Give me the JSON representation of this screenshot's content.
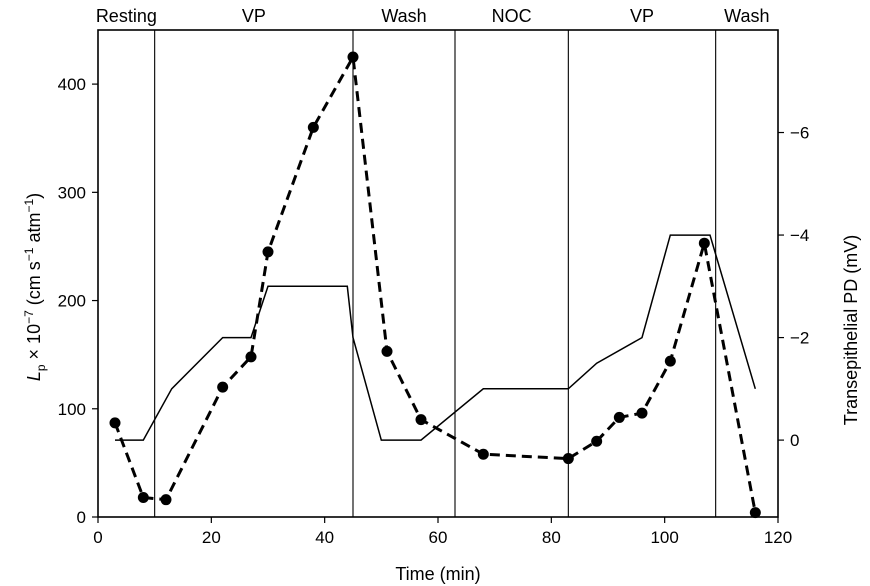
{
  "chart_data": {
    "type": "line",
    "title": "",
    "xlabel": "Time (min)",
    "ylabel_left": {
      "main": "L",
      "sub": "p",
      "rest1": " × 10",
      "sup1": "−7",
      "rest2": " (cm s",
      "sup2": "−1",
      "rest3": " atm",
      "sup3": "−1",
      "rest4": ")"
    },
    "ylabel_right": "Transepithelial PD (mV)",
    "xlim": [
      0,
      120
    ],
    "ylim_left": [
      0,
      450
    ],
    "ylim_right": [
      1.5,
      -8.0
    ],
    "x_ticks": [
      0,
      20,
      40,
      60,
      80,
      100,
      120
    ],
    "y_ticks_left": [
      0,
      100,
      200,
      300,
      400
    ],
    "y_ticks_right": [
      0,
      -2,
      -4,
      -6
    ],
    "y_tick_labels_right": [
      "0",
      "−2",
      "−4",
      "−6"
    ],
    "phases": [
      {
        "label": "Resting",
        "start": 0,
        "end": 10
      },
      {
        "label": "VP",
        "start": 10,
        "end": 45
      },
      {
        "label": "Wash",
        "start": 45,
        "end": 63
      },
      {
        "label": "NOC",
        "start": 63,
        "end": 83
      },
      {
        "label": "VP",
        "start": 83,
        "end": 109
      },
      {
        "label": "Wash",
        "start": 109,
        "end": 120
      }
    ],
    "phase_boundaries": [
      10,
      45,
      63,
      83,
      109
    ],
    "series": [
      {
        "axis": "left",
        "style": "dashed-markers",
        "x": [
          3,
          8,
          12,
          22,
          27,
          30,
          38,
          45,
          51,
          57,
          68,
          83,
          88,
          92,
          96,
          101,
          107,
          116
        ],
        "y": [
          87,
          18,
          16,
          120,
          148,
          245,
          360,
          425,
          153,
          90,
          58,
          54,
          70,
          92,
          96,
          144,
          253,
          4
        ]
      },
      {
        "axis": "right",
        "style": "solid",
        "x": [
          3,
          8,
          13,
          22,
          27,
          30,
          44,
          45,
          50,
          57,
          68,
          83,
          88,
          96,
          101,
          108,
          116
        ],
        "y": [
          0,
          0,
          -1.0,
          -2.0,
          -2.0,
          -3.0,
          -3.0,
          -2.0,
          0,
          0,
          -1.0,
          -1.0,
          -1.5,
          -2.0,
          -4.0,
          -4.0,
          -1.0
        ]
      }
    ]
  }
}
